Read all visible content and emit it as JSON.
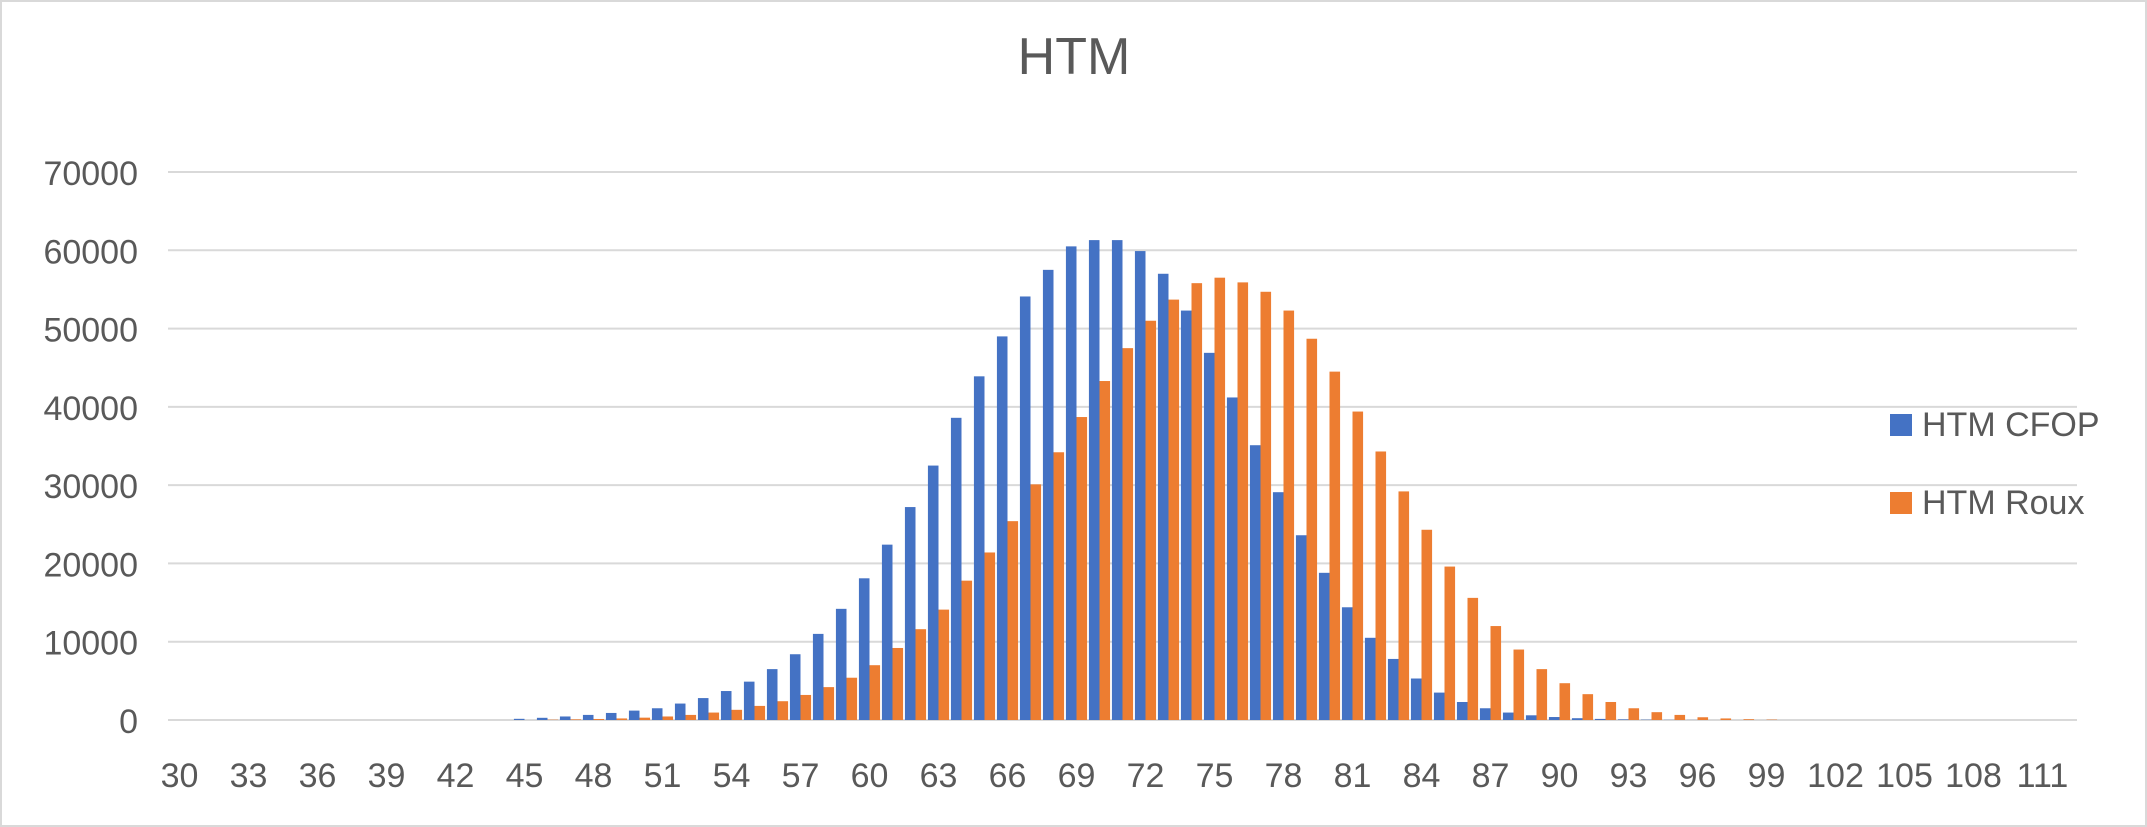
{
  "chart_data": {
    "type": "bar",
    "title": "HTM",
    "xlabel": "",
    "ylabel": "",
    "ylim": [
      0,
      70000
    ],
    "y_ticks": [
      0,
      10000,
      20000,
      30000,
      40000,
      50000,
      60000,
      70000
    ],
    "x_start": 30,
    "x_end": 112,
    "x_tick_labels": [
      "30",
      "33",
      "36",
      "39",
      "42",
      "45",
      "48",
      "51",
      "54",
      "57",
      "60",
      "63",
      "66",
      "69",
      "72",
      "75",
      "78",
      "81",
      "84",
      "87",
      "90",
      "93",
      "96",
      "99",
      "102",
      "105",
      "108",
      "111"
    ],
    "grid": true,
    "legend_position": "right",
    "series": [
      {
        "name": "HTM CFOP",
        "color": "#4472C4",
        "values": [
          0,
          0,
          0,
          0,
          0,
          0,
          0,
          0,
          0,
          0,
          0,
          0,
          0,
          0,
          0,
          150,
          280,
          450,
          650,
          900,
          1200,
          1500,
          2100,
          2800,
          3700,
          4900,
          6500,
          8400,
          11000,
          14200,
          18100,
          22400,
          27200,
          32500,
          38600,
          43900,
          49000,
          54100,
          57500,
          60500,
          61300,
          61300,
          59900,
          57000,
          52300,
          46900,
          41200,
          35100,
          29100,
          23600,
          18800,
          14400,
          10500,
          7800,
          5300,
          3500,
          2300,
          1500,
          950,
          600,
          380,
          230,
          140,
          80,
          40,
          20,
          10,
          0,
          0,
          0,
          0,
          0,
          0,
          0,
          0,
          0,
          0,
          0,
          0,
          0,
          0,
          0,
          0
        ]
      },
      {
        "name": "HTM Roux",
        "color": "#ED7D31",
        "values": [
          0,
          0,
          0,
          0,
          0,
          0,
          0,
          0,
          0,
          0,
          0,
          0,
          0,
          0,
          0,
          0,
          40,
          80,
          130,
          200,
          300,
          450,
          650,
          950,
          1300,
          1800,
          2400,
          3200,
          4200,
          5400,
          7000,
          9200,
          11600,
          14100,
          17800,
          21400,
          25400,
          30100,
          34200,
          38700,
          43300,
          47500,
          51000,
          53700,
          55800,
          56500,
          55900,
          54700,
          52300,
          48700,
          44500,
          39400,
          34300,
          29200,
          24300,
          19600,
          15600,
          12000,
          9000,
          6500,
          4700,
          3300,
          2300,
          1500,
          1000,
          650,
          350,
          200,
          100,
          50,
          0,
          0,
          0,
          0,
          0,
          0,
          0,
          0,
          0,
          0,
          0,
          0,
          0
        ]
      }
    ]
  }
}
